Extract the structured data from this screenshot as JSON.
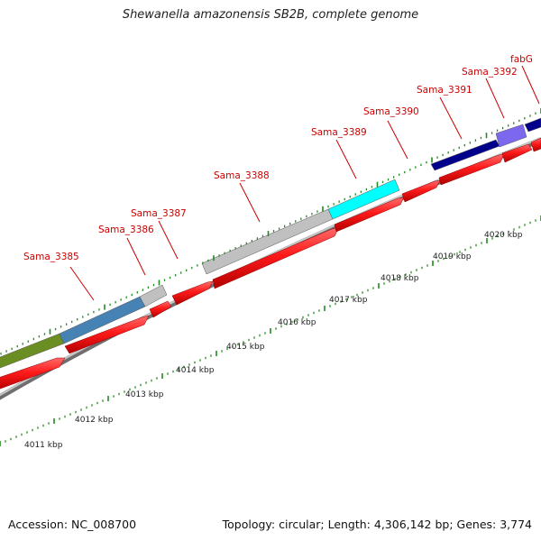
{
  "title": "Shewanella amazonensis SB2B, complete genome",
  "footer": {
    "accession": "Accession: NC_008700",
    "summary": "Topology: circular; Length: 4,306,142 bp; Genes: 3,774"
  },
  "colors": {
    "cds_arrow": "#ff1a1a",
    "backbone": "#999999",
    "tick": "#228b22",
    "label": "#cc0000",
    "kbp_text": "#222222"
  },
  "gene_labels": [
    {
      "id": "sama-3385",
      "text": "Sama_3385"
    },
    {
      "id": "sama-3386",
      "text": "Sama_3386"
    },
    {
      "id": "sama-3387",
      "text": "Sama_3387"
    },
    {
      "id": "sama-3388",
      "text": "Sama_3388"
    },
    {
      "id": "sama-3389",
      "text": "Sama_3389"
    },
    {
      "id": "sama-3390",
      "text": "Sama_3390"
    },
    {
      "id": "sama-3391",
      "text": "Sama_3391"
    },
    {
      "id": "sama-3392",
      "text": "Sama_3392"
    },
    {
      "id": "fabg",
      "text": "fabG"
    }
  ],
  "kbp_labels": [
    {
      "id": "4011",
      "text": "4011 kbp"
    },
    {
      "id": "4012",
      "text": "4012 kbp"
    },
    {
      "id": "4013",
      "text": "4013 kbp"
    },
    {
      "id": "4014",
      "text": "4014 kbp"
    },
    {
      "id": "4015",
      "text": "4015 kbp"
    },
    {
      "id": "4016",
      "text": "4016 kbp"
    },
    {
      "id": "4017",
      "text": "4017 kbp"
    },
    {
      "id": "4018",
      "text": "4018 kbp"
    },
    {
      "id": "4019",
      "text": "4019 kbp"
    },
    {
      "id": "4020",
      "text": "4020 kbp"
    }
  ],
  "cog_bars": [
    {
      "id": "olive",
      "color": "#6b8e23"
    },
    {
      "id": "steelblue",
      "color": "#4682b4"
    },
    {
      "id": "gray-a",
      "color": "#c0c0c0"
    },
    {
      "id": "gray-b",
      "color": "#c0c0c0"
    },
    {
      "id": "cyan",
      "color": "#00ffff"
    },
    {
      "id": "navy",
      "color": "#00008b"
    },
    {
      "id": "slateblue",
      "color": "#7b68ee"
    },
    {
      "id": "navy-b",
      "color": "#00008b"
    }
  ]
}
